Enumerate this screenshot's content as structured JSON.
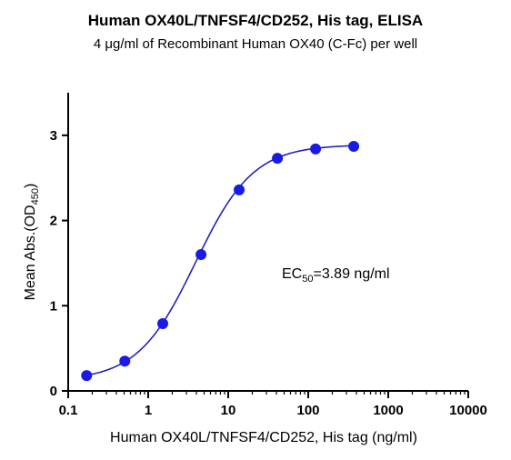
{
  "chart_data": {
    "type": "scatter",
    "title": "Human OX40L/TNFSF4/CD252, His tag, ELISA",
    "subtitle": "4 μg/ml of Recombinant Human OX40 (C-Fc) per well",
    "xlabel": "Human OX40L/TNFSF4/CD252, His tag (ng/ml)",
    "ylabel": {
      "main": "Mean Abs.(OD",
      "sub": "450",
      "close": ")"
    },
    "xscale": "log",
    "xlim": [
      0.1,
      10000
    ],
    "ylim": [
      0,
      3.5
    ],
    "xticks": [
      0.1,
      1,
      10,
      100,
      1000,
      10000
    ],
    "xtick_labels": [
      "0.1",
      "1",
      "10",
      "100",
      "1000",
      "10000"
    ],
    "yticks": [
      0,
      1,
      2,
      3
    ],
    "ytick_labels": [
      "0",
      "1",
      "2",
      "3"
    ],
    "grid": false,
    "series": [
      {
        "color": "#1a1ae6",
        "x": [
          0.17,
          0.51,
          1.52,
          4.57,
          13.7,
          41.2,
          123.5,
          370.4
        ],
        "y": [
          0.18,
          0.35,
          0.79,
          1.6,
          2.36,
          2.73,
          2.84,
          2.87
        ]
      }
    ],
    "fit": {
      "bottom": 0.12,
      "top": 2.89,
      "ec50": 3.89,
      "hill": 1.2
    },
    "annotation": {
      "prefix": "EC",
      "sub": "50",
      "suffix": "=3.89 ng/ml"
    },
    "curve_color": "#2323b8"
  }
}
